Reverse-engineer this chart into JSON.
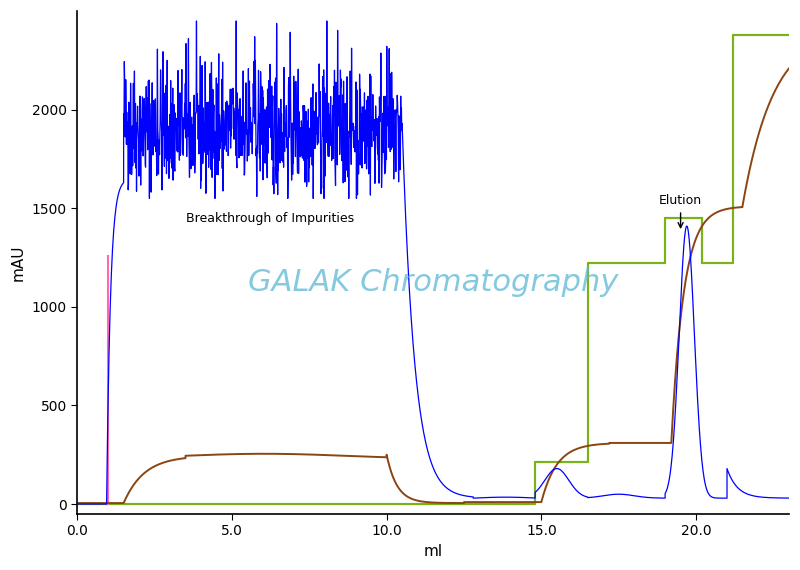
{
  "title": "GALAK Chromatography",
  "title_color": "#5bb8d4",
  "title_fontsize": 22,
  "ylabel": "mAU",
  "xlabel": "ml",
  "xlim": [
    0,
    23
  ],
  "ylim": [
    -50,
    2500
  ],
  "yticks": [
    0,
    500,
    1000,
    1500,
    2000
  ],
  "xticks": [
    0.0,
    5.0,
    10.0,
    15.0,
    20.0
  ],
  "xtick_labels": [
    "0.0",
    "5.0",
    "10.0",
    "15.0",
    "20.0"
  ],
  "bg_color": "#ffffff",
  "label_breakthrough": "Breakthrough of Impurities",
  "label_elution": "Elution",
  "pink_line_x": 1.0,
  "pink_line_ymax": 1260
}
